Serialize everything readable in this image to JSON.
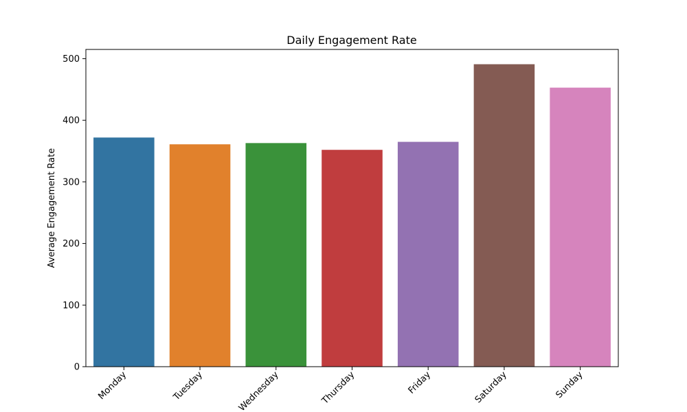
{
  "chart_data": {
    "type": "bar",
    "title": "Daily Engagement Rate",
    "xlabel": "",
    "ylabel": "Average Engagement Rate",
    "categories": [
      "Monday",
      "Tuesday",
      "Wednesday",
      "Thursday",
      "Friday",
      "Saturday",
      "Sunday"
    ],
    "values": [
      372,
      361,
      363,
      352,
      365,
      491,
      453
    ],
    "colors": [
      "#3274a1",
      "#e1812c",
      "#3a923a",
      "#c03d3e",
      "#9372b2",
      "#845b53",
      "#d684bd"
    ],
    "ylim": [
      0,
      515
    ],
    "yticks": [
      0,
      100,
      200,
      300,
      400,
      500
    ],
    "x_tick_rotation": 45,
    "grid": false,
    "legend": "none"
  }
}
